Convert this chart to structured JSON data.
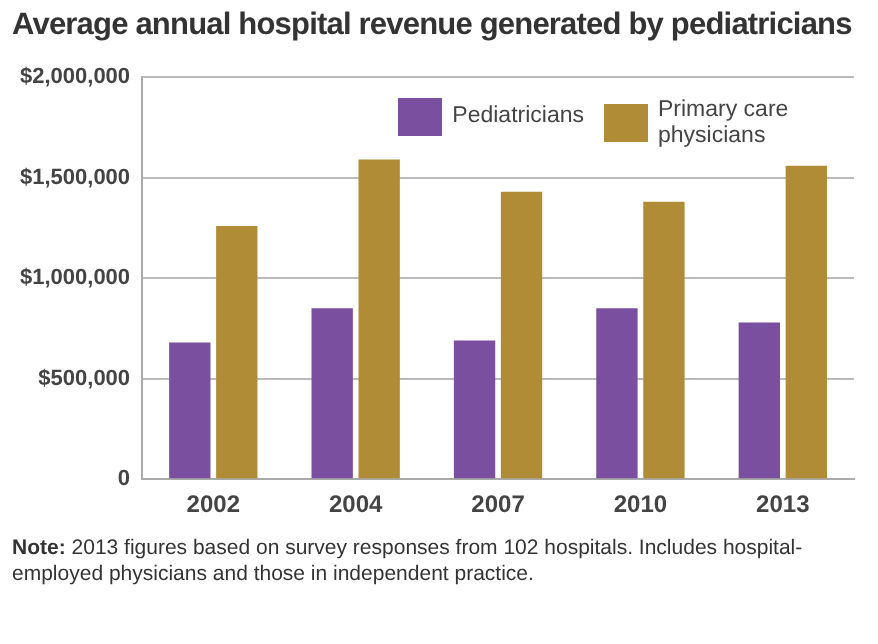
{
  "chart_data": {
    "type": "bar",
    "title": "Average annual hospital revenue generated by pediatricians",
    "categories": [
      "2002",
      "2004",
      "2007",
      "2010",
      "2013"
    ],
    "series": [
      {
        "name": "Pediatricians",
        "color": "#7b4fa0",
        "values": [
          680000,
          850000,
          690000,
          850000,
          780000
        ]
      },
      {
        "name": "Primary care physicians",
        "color": "#b08c36",
        "values": [
          1260000,
          1590000,
          1430000,
          1380000,
          1560000
        ]
      }
    ],
    "ylim": [
      0,
      2000000
    ],
    "yticks": [
      {
        "value": 0,
        "label": "0"
      },
      {
        "value": 500000,
        "label": "$500,000"
      },
      {
        "value": 1000000,
        "label": "$1,000,000"
      },
      {
        "value": 1500000,
        "label": "$1,500,000"
      },
      {
        "value": 2000000,
        "label": "$2,000,000"
      }
    ],
    "grid": "y",
    "legend": "top right",
    "annotations": [
      "Note: 2013 figures based on survey responses from 102 hospitals. Includes hospital-employed physicians and those in independent practice."
    ]
  }
}
